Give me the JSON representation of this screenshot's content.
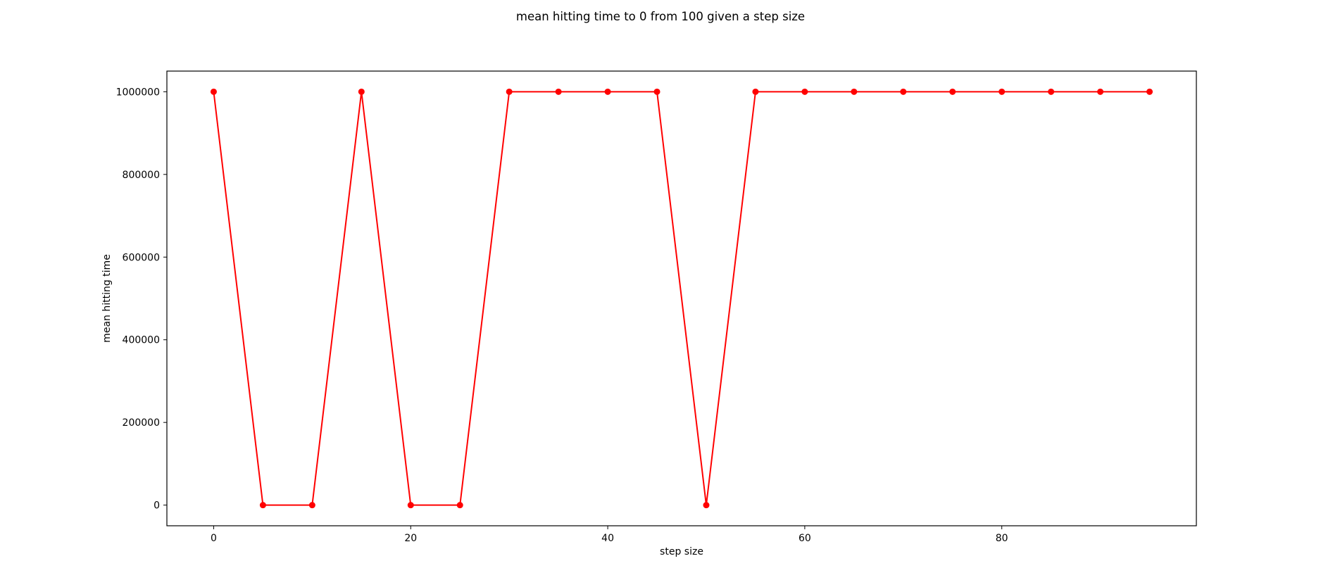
{
  "chart_data": {
    "type": "line",
    "title": "mean hitting time to 0 from 100 given a step size",
    "xlabel": "step size",
    "ylabel": "mean hitting time",
    "xlim": [
      -4.75,
      99.75
    ],
    "ylim": [
      -50000,
      1050000
    ],
    "xticks": [
      0,
      20,
      40,
      60,
      80
    ],
    "yticks": [
      0,
      200000,
      400000,
      600000,
      800000,
      1000000
    ],
    "grid": false,
    "series": [
      {
        "color": "#ff0000",
        "marker": "circle",
        "x": [
          0,
          5,
          10,
          15,
          20,
          25,
          30,
          35,
          40,
          45,
          50,
          55,
          60,
          65,
          70,
          75,
          80,
          85,
          90,
          95
        ],
        "y": [
          1000000,
          0,
          0,
          1000000,
          0,
          0,
          1000000,
          1000000,
          1000000,
          1000000,
          0,
          1000000,
          1000000,
          1000000,
          1000000,
          1000000,
          1000000,
          1000000,
          1000000,
          1000000
        ]
      }
    ]
  }
}
